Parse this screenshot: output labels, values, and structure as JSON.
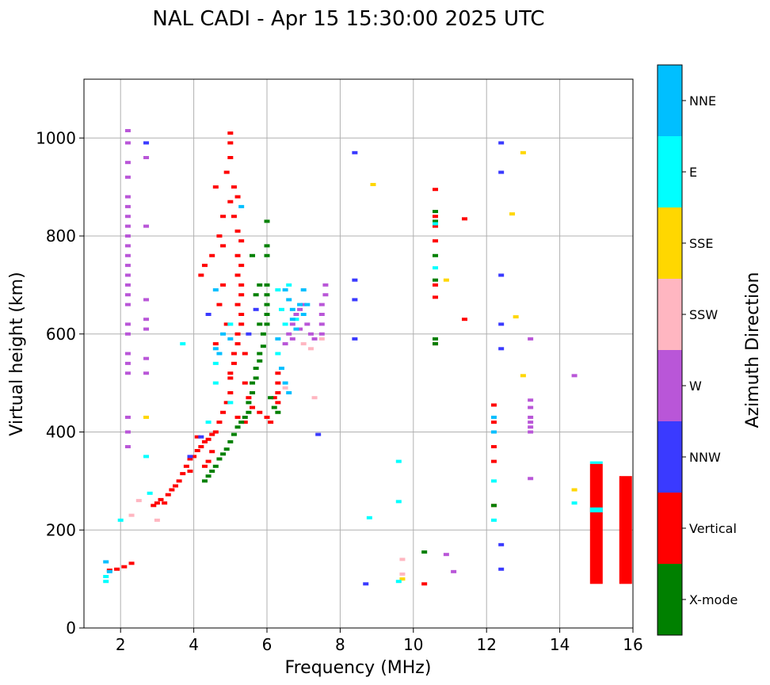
{
  "chart_data": {
    "type": "scatter",
    "title": "NAL CADI - Apr 15 15:30:00 2025 UTC",
    "xlabel": "Frequency (MHz)",
    "ylabel": "Virtual height (km)",
    "xlim": [
      1,
      16
    ],
    "ylim": [
      0,
      1120
    ],
    "xticks": [
      2,
      4,
      6,
      8,
      10,
      12,
      14,
      16
    ],
    "yticks": [
      0,
      200,
      400,
      600,
      800,
      1000
    ],
    "grid": true,
    "colorbar": {
      "label": "Azimuth Direction",
      "categories": [
        {
          "name": "X-mode",
          "color": "#008000"
        },
        {
          "name": "Vertical",
          "color": "#ff0000"
        },
        {
          "name": "NNW",
          "color": "#3a3aff"
        },
        {
          "name": "W",
          "color": "#b956d8"
        },
        {
          "name": "SSW",
          "color": "#ffb6c1"
        },
        {
          "name": "SSE",
          "color": "#ffd700"
        },
        {
          "name": "E",
          "color": "#00ffff"
        },
        {
          "name": "NNE",
          "color": "#00bfff"
        }
      ]
    },
    "bars": [
      {
        "category": "Vertical",
        "x": 15.0,
        "y0": 90,
        "y1": 335
      },
      {
        "category": "E",
        "x": 15.0,
        "y0": 236,
        "y1": 246
      },
      {
        "category": "E",
        "x": 15.0,
        "y0": 335,
        "y1": 340
      },
      {
        "category": "Vertical",
        "x": 15.8,
        "y0": 90,
        "y1": 310
      }
    ],
    "traces": [
      {
        "category": "Vertical",
        "points": [
          [
            1.7,
            118
          ],
          [
            1.9,
            120
          ],
          [
            2.1,
            125
          ],
          [
            2.3,
            132
          ],
          [
            2.9,
            250
          ],
          [
            3.0,
            255
          ],
          [
            3.1,
            262
          ],
          [
            3.3,
            272
          ],
          [
            3.4,
            282
          ],
          [
            3.6,
            300
          ],
          [
            3.7,
            315
          ],
          [
            3.8,
            330
          ],
          [
            3.9,
            345
          ],
          [
            4.0,
            350
          ],
          [
            4.1,
            362
          ],
          [
            4.2,
            370
          ],
          [
            4.3,
            380
          ],
          [
            4.4,
            385
          ],
          [
            4.5,
            395
          ],
          [
            4.6,
            400
          ],
          [
            4.7,
            420
          ],
          [
            4.8,
            440
          ],
          [
            4.9,
            460
          ],
          [
            5.0,
            480
          ],
          [
            5.0,
            520
          ],
          [
            5.1,
            540
          ],
          [
            5.1,
            560
          ],
          [
            5.2,
            580
          ],
          [
            5.2,
            600
          ],
          [
            5.3,
            620
          ],
          [
            5.3,
            640
          ],
          [
            5.2,
            660
          ],
          [
            5.3,
            680
          ],
          [
            5.3,
            700
          ],
          [
            5.2,
            720
          ],
          [
            5.3,
            740
          ],
          [
            5.2,
            760
          ],
          [
            5.3,
            790
          ],
          [
            5.2,
            810
          ],
          [
            5.1,
            840
          ],
          [
            5.0,
            870
          ],
          [
            5.1,
            900
          ],
          [
            4.9,
            930
          ],
          [
            5.0,
            960
          ],
          [
            5.0,
            990
          ],
          [
            5.0,
            1010
          ],
          [
            4.7,
            800
          ],
          [
            4.5,
            760
          ],
          [
            4.3,
            740
          ],
          [
            4.2,
            720
          ],
          [
            4.8,
            780
          ],
          [
            4.6,
            580
          ],
          [
            4.9,
            620
          ],
          [
            4.8,
            700
          ],
          [
            4.7,
            660
          ],
          [
            5.4,
            500
          ],
          [
            5.5,
            470
          ],
          [
            5.6,
            450
          ],
          [
            5.8,
            440
          ],
          [
            6.0,
            430
          ],
          [
            6.1,
            420
          ],
          [
            6.2,
            470
          ],
          [
            6.3,
            460
          ],
          [
            6.3,
            480
          ],
          [
            6.3,
            500
          ],
          [
            6.3,
            520
          ],
          [
            4.5,
            360
          ],
          [
            4.4,
            340
          ],
          [
            4.3,
            330
          ],
          [
            3.9,
            320
          ],
          [
            3.2,
            255
          ],
          [
            3.5,
            290
          ],
          [
            4.1,
            390
          ],
          [
            5.4,
            420
          ],
          [
            5.2,
            430
          ],
          [
            5.0,
            510
          ],
          [
            5.4,
            560
          ],
          [
            4.6,
            900
          ],
          [
            4.8,
            840
          ],
          [
            5.2,
            880
          ],
          [
            10.6,
            675
          ],
          [
            10.6,
            700
          ],
          [
            10.6,
            790
          ],
          [
            10.6,
            820
          ],
          [
            10.6,
            840
          ],
          [
            10.6,
            895
          ],
          [
            10.6,
            580
          ],
          [
            11.4,
            630
          ],
          [
            11.4,
            835
          ],
          [
            12.2,
            455
          ],
          [
            12.2,
            420
          ],
          [
            12.2,
            370
          ],
          [
            12.2,
            340
          ],
          [
            12.2,
            250
          ],
          [
            10.3,
            90
          ]
        ]
      },
      {
        "category": "X-mode",
        "points": [
          [
            4.3,
            300
          ],
          [
            4.4,
            310
          ],
          [
            4.5,
            320
          ],
          [
            4.6,
            330
          ],
          [
            4.7,
            345
          ],
          [
            4.8,
            355
          ],
          [
            4.9,
            365
          ],
          [
            5.0,
            380
          ],
          [
            5.1,
            395
          ],
          [
            5.2,
            410
          ],
          [
            5.3,
            420
          ],
          [
            5.4,
            430
          ],
          [
            5.5,
            440
          ],
          [
            5.5,
            460
          ],
          [
            5.6,
            480
          ],
          [
            5.6,
            500
          ],
          [
            5.7,
            510
          ],
          [
            5.7,
            530
          ],
          [
            5.8,
            545
          ],
          [
            5.8,
            560
          ],
          [
            5.9,
            575
          ],
          [
            5.9,
            600
          ],
          [
            6.0,
            620
          ],
          [
            6.0,
            640
          ],
          [
            6.0,
            660
          ],
          [
            6.0,
            680
          ],
          [
            6.0,
            700
          ],
          [
            6.0,
            760
          ],
          [
            6.0,
            780
          ],
          [
            6.0,
            830
          ],
          [
            6.1,
            470
          ],
          [
            6.2,
            450
          ],
          [
            6.3,
            440
          ],
          [
            5.8,
            620
          ],
          [
            5.7,
            680
          ],
          [
            5.8,
            700
          ],
          [
            5.6,
            760
          ],
          [
            10.6,
            580
          ],
          [
            10.6,
            590
          ],
          [
            10.6,
            710
          ],
          [
            10.6,
            760
          ],
          [
            10.6,
            830
          ],
          [
            10.6,
            850
          ],
          [
            12.2,
            250
          ],
          [
            10.3,
            155
          ]
        ]
      },
      {
        "category": "NNW",
        "points": [
          [
            2.7,
            990
          ],
          [
            4.4,
            640
          ],
          [
            5.5,
            600
          ],
          [
            5.7,
            650
          ],
          [
            8.4,
            970
          ],
          [
            8.4,
            710
          ],
          [
            8.4,
            670
          ],
          [
            8.4,
            590
          ],
          [
            8.7,
            90
          ],
          [
            12.4,
            990
          ],
          [
            12.4,
            930
          ],
          [
            12.4,
            720
          ],
          [
            12.4,
            620
          ],
          [
            12.4,
            570
          ],
          [
            12.4,
            170
          ],
          [
            12.4,
            120
          ],
          [
            7.4,
            395
          ],
          [
            4.2,
            390
          ],
          [
            3.9,
            350
          ]
        ]
      },
      {
        "category": "W",
        "points": [
          [
            2.2,
            1015
          ],
          [
            2.2,
            990
          ],
          [
            2.2,
            950
          ],
          [
            2.2,
            920
          ],
          [
            2.2,
            880
          ],
          [
            2.2,
            860
          ],
          [
            2.2,
            840
          ],
          [
            2.2,
            820
          ],
          [
            2.2,
            800
          ],
          [
            2.2,
            780
          ],
          [
            2.2,
            760
          ],
          [
            2.2,
            740
          ],
          [
            2.2,
            720
          ],
          [
            2.2,
            700
          ],
          [
            2.2,
            680
          ],
          [
            2.2,
            660
          ],
          [
            2.2,
            620
          ],
          [
            2.2,
            600
          ],
          [
            2.2,
            560
          ],
          [
            2.2,
            540
          ],
          [
            2.2,
            520
          ],
          [
            2.2,
            430
          ],
          [
            2.2,
            400
          ],
          [
            2.2,
            370
          ],
          [
            2.7,
            960
          ],
          [
            2.7,
            820
          ],
          [
            2.7,
            670
          ],
          [
            2.7,
            630
          ],
          [
            2.7,
            610
          ],
          [
            2.7,
            550
          ],
          [
            2.7,
            520
          ],
          [
            6.5,
            580
          ],
          [
            6.6,
            600
          ],
          [
            6.7,
            620
          ],
          [
            6.8,
            640
          ],
          [
            6.9,
            650
          ],
          [
            7.0,
            660
          ],
          [
            7.1,
            620
          ],
          [
            7.2,
            600
          ],
          [
            7.3,
            590
          ],
          [
            7.5,
            640
          ],
          [
            7.5,
            620
          ],
          [
            7.5,
            600
          ],
          [
            7.5,
            660
          ],
          [
            7.6,
            700
          ],
          [
            7.6,
            680
          ],
          [
            6.7,
            590
          ],
          [
            6.9,
            610
          ],
          [
            13.2,
            590
          ],
          [
            13.2,
            465
          ],
          [
            13.2,
            450
          ],
          [
            13.2,
            430
          ],
          [
            13.2,
            420
          ],
          [
            13.2,
            410
          ],
          [
            13.2,
            400
          ],
          [
            13.2,
            305
          ],
          [
            14.4,
            515
          ],
          [
            11.1,
            115
          ],
          [
            10.9,
            150
          ]
        ]
      },
      {
        "category": "SSW",
        "points": [
          [
            2.3,
            230
          ],
          [
            2.5,
            260
          ],
          [
            3.0,
            220
          ],
          [
            7.0,
            580
          ],
          [
            7.2,
            570
          ],
          [
            7.5,
            590
          ],
          [
            9.7,
            140
          ],
          [
            9.7,
            110
          ],
          [
            7.3,
            470
          ],
          [
            6.5,
            490
          ]
        ]
      },
      {
        "category": "SSE",
        "points": [
          [
            2.7,
            430
          ],
          [
            8.9,
            905
          ],
          [
            10.9,
            710
          ],
          [
            12.7,
            845
          ],
          [
            13.0,
            970
          ],
          [
            12.8,
            635
          ],
          [
            13.0,
            515
          ],
          [
            14.4,
            282
          ],
          [
            9.7,
            100
          ]
        ]
      },
      {
        "category": "E",
        "points": [
          [
            1.6,
            95
          ],
          [
            1.6,
            105
          ],
          [
            2.0,
            220
          ],
          [
            2.7,
            350
          ],
          [
            2.8,
            275
          ],
          [
            3.7,
            580
          ],
          [
            4.6,
            540
          ],
          [
            4.6,
            500
          ],
          [
            5.0,
            620
          ],
          [
            5.0,
            460
          ],
          [
            6.3,
            690
          ],
          [
            6.4,
            650
          ],
          [
            6.5,
            620
          ],
          [
            6.3,
            560
          ],
          [
            6.6,
            700
          ],
          [
            6.8,
            630
          ],
          [
            8.8,
            225
          ],
          [
            9.6,
            340
          ],
          [
            9.6,
            258
          ],
          [
            9.6,
            95
          ],
          [
            10.6,
            735
          ],
          [
            10.6,
            825
          ],
          [
            12.2,
            300
          ],
          [
            12.2,
            220
          ],
          [
            14.4,
            255
          ],
          [
            4.4,
            420
          ]
        ]
      },
      {
        "category": "NNE",
        "points": [
          [
            1.6,
            135
          ],
          [
            1.7,
            115
          ],
          [
            4.6,
            570
          ],
          [
            4.7,
            560
          ],
          [
            4.6,
            690
          ],
          [
            4.8,
            600
          ],
          [
            5.0,
            590
          ],
          [
            5.3,
            860
          ],
          [
            6.3,
            590
          ],
          [
            6.5,
            690
          ],
          [
            6.6,
            670
          ],
          [
            6.7,
            650
          ],
          [
            6.7,
            630
          ],
          [
            6.8,
            610
          ],
          [
            6.9,
            660
          ],
          [
            7.0,
            690
          ],
          [
            7.0,
            640
          ],
          [
            7.1,
            660
          ],
          [
            6.5,
            500
          ],
          [
            6.6,
            480
          ],
          [
            6.4,
            530
          ],
          [
            12.2,
            400
          ],
          [
            12.2,
            430
          ]
        ]
      }
    ]
  }
}
